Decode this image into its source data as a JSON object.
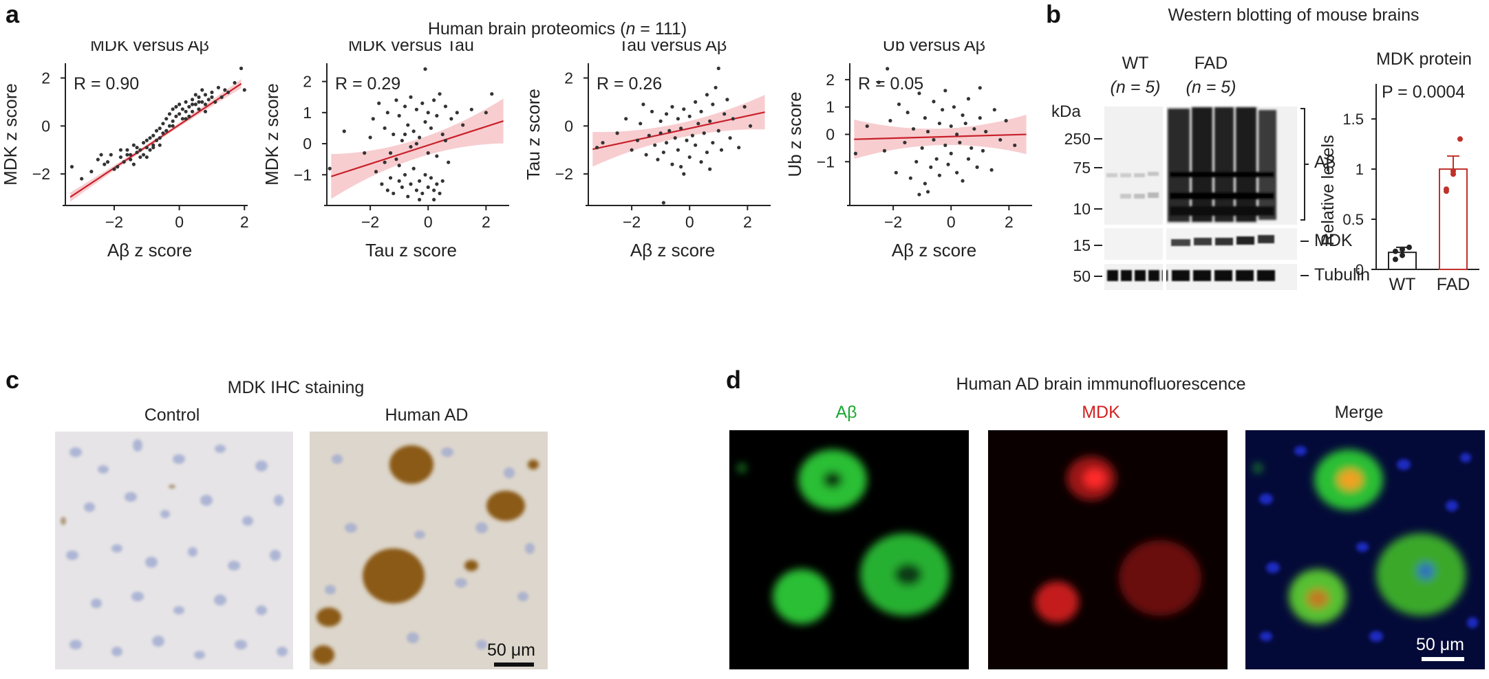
{
  "panel_labels": {
    "a": "a",
    "b": "b",
    "c": "c",
    "d": "d"
  },
  "panel_a": {
    "title_pre": "Human brain proteomics (",
    "title_n": "n",
    "title_post": " = 111)"
  },
  "panel_b": {
    "title": "Western blotting of mouse brains",
    "blot": {
      "lane_groups": [
        {
          "label": "WT",
          "n_label": "(n = 5)"
        },
        {
          "label": "FAD",
          "n_label": "(n = 5)"
        }
      ],
      "kda_label": "kDa",
      "markers": [
        "250",
        "75",
        "10",
        "15",
        "50"
      ],
      "bands": [
        "Aβ",
        "MDK",
        "Tubulin"
      ]
    },
    "quant_title": "MDK protein",
    "p_value": "P = 0.0004",
    "bar_chart_ylabel": "Relative levels"
  },
  "panel_c": {
    "title": "MDK IHC staining",
    "images": [
      {
        "label": "Control"
      },
      {
        "label": "Human AD"
      }
    ],
    "scale_bar": "50 μm"
  },
  "panel_d": {
    "title": "Human AD brain immunofluorescence",
    "images": [
      {
        "label": "Aβ",
        "color": "#1aa832"
      },
      {
        "label": "MDK",
        "color": "#d42020"
      },
      {
        "label": "Merge",
        "color": "#222222"
      }
    ],
    "scale_bar": "50 μm"
  },
  "chart_data": [
    {
      "type": "scatter",
      "title": "MDK versus Aβ",
      "xlabel": "Aβ z score",
      "ylabel": "MDK z score",
      "xlim": [
        -3.5,
        2.1
      ],
      "ylim": [
        -3.2,
        2.5
      ],
      "xticks": [
        -2,
        0,
        2
      ],
      "yticks": [
        -2,
        0,
        2
      ],
      "annotation": "R = 0.90",
      "fit": {
        "slope": 0.9,
        "intercept": 0.05,
        "ci_width": 0.08
      },
      "points": [
        [
          -3.3,
          -1.7
        ],
        [
          -3.0,
          -2.2
        ],
        [
          -2.7,
          -1.9
        ],
        [
          -2.5,
          -1.4
        ],
        [
          -2.3,
          -1.6
        ],
        [
          -2.2,
          -1.5
        ],
        [
          -2.1,
          -1.2
        ],
        [
          -2.0,
          -1.8
        ],
        [
          -1.9,
          -1.7
        ],
        [
          -1.8,
          -1.3
        ],
        [
          -1.7,
          -1.5
        ],
        [
          -1.6,
          -1.0
        ],
        [
          -1.5,
          -1.4
        ],
        [
          -1.5,
          -1.2
        ],
        [
          -1.4,
          -1.6
        ],
        [
          -1.3,
          -1.1
        ],
        [
          -1.3,
          -0.9
        ],
        [
          -1.2,
          -1.3
        ],
        [
          -1.2,
          -1.0
        ],
        [
          -1.1,
          -0.7
        ],
        [
          -1.1,
          -1.2
        ],
        [
          -1.0,
          -0.9
        ],
        [
          -1.0,
          -0.6
        ],
        [
          -0.9,
          -1.0
        ],
        [
          -0.9,
          -0.5
        ],
        [
          -0.8,
          -0.8
        ],
        [
          -0.8,
          -0.4
        ],
        [
          -0.7,
          -0.6
        ],
        [
          -0.7,
          -0.2
        ],
        [
          -0.6,
          -0.5
        ],
        [
          -0.6,
          -0.1
        ],
        [
          -0.5,
          -0.3
        ],
        [
          -0.5,
          0.1
        ],
        [
          -0.4,
          -0.2
        ],
        [
          -0.4,
          0.3
        ],
        [
          -0.3,
          0.0
        ],
        [
          -0.3,
          0.5
        ],
        [
          -0.2,
          0.2
        ],
        [
          -0.2,
          0.7
        ],
        [
          -0.1,
          0.4
        ],
        [
          -0.1,
          0.8
        ],
        [
          0.0,
          0.5
        ],
        [
          0.0,
          0.9
        ],
        [
          0.1,
          0.3
        ],
        [
          0.1,
          0.7
        ],
        [
          0.2,
          0.6
        ],
        [
          0.2,
          1.0
        ],
        [
          0.3,
          0.8
        ],
        [
          0.3,
          0.4
        ],
        [
          0.4,
          1.1
        ],
        [
          0.4,
          0.6
        ],
        [
          0.5,
          0.9
        ],
        [
          0.5,
          1.3
        ],
        [
          0.6,
          0.7
        ],
        [
          0.6,
          1.2
        ],
        [
          0.7,
          1.0
        ],
        [
          0.7,
          1.5
        ],
        [
          0.8,
          0.9
        ],
        [
          0.8,
          1.3
        ],
        [
          0.9,
          1.1
        ],
        [
          1.0,
          1.4
        ],
        [
          1.1,
          1.0
        ],
        [
          1.2,
          1.6
        ],
        [
          1.3,
          1.2
        ],
        [
          1.4,
          1.5
        ],
        [
          1.5,
          1.4
        ],
        [
          1.7,
          1.8
        ],
        [
          1.9,
          2.4
        ],
        [
          2.0,
          1.5
        ],
        [
          -1.6,
          -1.2
        ],
        [
          -1.4,
          -0.8
        ],
        [
          -1.0,
          -1.3
        ],
        [
          -0.6,
          -0.8
        ],
        [
          -0.2,
          0.0
        ],
        [
          0.2,
          0.3
        ],
        [
          0.6,
          1.0
        ],
        [
          1.0,
          1.2
        ],
        [
          -2.4,
          -1.2
        ],
        [
          -1.8,
          -1.0
        ],
        [
          -0.8,
          -0.9
        ],
        [
          0.4,
          0.9
        ],
        [
          0.8,
          0.6
        ]
      ]
    },
    {
      "type": "scatter",
      "title": "MDK versus Tau",
      "xlabel": "Tau z score",
      "ylabel": "MDK z score",
      "xlim": [
        -3.5,
        2.8
      ],
      "ylim": [
        -1.9,
        2.5
      ],
      "xticks": [
        -2,
        0,
        2
      ],
      "yticks": [
        -1,
        0,
        1,
        2
      ],
      "annotation": "R = 0.29",
      "fit": {
        "slope": 0.3,
        "intercept": -0.05,
        "ci_width": 0.3
      },
      "points": [
        [
          -3.4,
          -0.8
        ],
        [
          -2.9,
          0.4
        ],
        [
          -2.2,
          -0.3
        ],
        [
          -2.0,
          0.2
        ],
        [
          -1.9,
          0.8
        ],
        [
          -1.8,
          -0.9
        ],
        [
          -1.7,
          1.3
        ],
        [
          -1.6,
          -1.3
        ],
        [
          -1.5,
          0.5
        ],
        [
          -1.4,
          -1.5
        ],
        [
          -1.4,
          1.0
        ],
        [
          -1.3,
          -1.1
        ],
        [
          -1.2,
          0.3
        ],
        [
          -1.2,
          -1.6
        ],
        [
          -1.1,
          1.4
        ],
        [
          -1.1,
          -0.5
        ],
        [
          -1.0,
          -1.2
        ],
        [
          -1.0,
          0.9
        ],
        [
          -0.9,
          -1.4
        ],
        [
          -0.9,
          0.1
        ],
        [
          -0.8,
          1.2
        ],
        [
          -0.8,
          -1.0
        ],
        [
          -0.7,
          -1.7
        ],
        [
          -0.7,
          0.6
        ],
        [
          -0.6,
          -1.3
        ],
        [
          -0.6,
          1.5
        ],
        [
          -0.5,
          -0.8
        ],
        [
          -0.5,
          0.4
        ],
        [
          -0.4,
          -1.5
        ],
        [
          -0.4,
          1.1
        ],
        [
          -0.3,
          -1.2
        ],
        [
          -0.3,
          0.2
        ],
        [
          -0.2,
          -1.6
        ],
        [
          -0.2,
          1.3
        ],
        [
          -0.1,
          -1.0
        ],
        [
          -0.1,
          0.7
        ],
        [
          0.0,
          -1.4
        ],
        [
          0.0,
          1.0
        ],
        [
          0.1,
          -1.1
        ],
        [
          0.1,
          0.5
        ],
        [
          0.2,
          -1.5
        ],
        [
          0.2,
          1.4
        ],
        [
          0.3,
          -1.3
        ],
        [
          0.3,
          0.9
        ],
        [
          0.4,
          -1.6
        ],
        [
          0.4,
          1.6
        ],
        [
          0.5,
          -1.2
        ],
        [
          0.5,
          0.3
        ],
        [
          0.6,
          1.2
        ],
        [
          0.7,
          -0.6
        ],
        [
          0.8,
          0.8
        ],
        [
          1.0,
          1.0
        ],
        [
          1.2,
          0.6
        ],
        [
          1.5,
          1.1
        ],
        [
          2.0,
          1.0
        ],
        [
          2.2,
          1.6
        ],
        [
          -0.1,
          2.4
        ],
        [
          -1.3,
          -0.3
        ],
        [
          -0.6,
          -0.1
        ],
        [
          0.3,
          -0.4
        ],
        [
          -1.0,
          -0.7
        ],
        [
          -0.4,
          0.0
        ],
        [
          0.6,
          0.1
        ],
        [
          -0.8,
          0.3
        ],
        [
          -1.5,
          -0.6
        ],
        [
          0.0,
          -0.3
        ],
        [
          -0.3,
          -1.8
        ],
        [
          0.2,
          -1.8
        ]
      ]
    },
    {
      "type": "scatter",
      "title": "Tau versus Aβ",
      "xlabel": "Aβ z score",
      "ylabel": "Tau z score",
      "xlim": [
        -3.5,
        2.8
      ],
      "ylim": [
        -3.2,
        2.5
      ],
      "xticks": [
        -2,
        0,
        2
      ],
      "yticks": [
        -2,
        0,
        2
      ],
      "annotation": "R = 0.26",
      "fit": {
        "slope": 0.26,
        "intercept": -0.1,
        "ci_width": 0.3
      },
      "points": [
        [
          -3.2,
          -0.9
        ],
        [
          -3.0,
          -0.7
        ],
        [
          -2.5,
          -0.3
        ],
        [
          -2.2,
          0.3
        ],
        [
          -2.0,
          -1.0
        ],
        [
          -1.8,
          -0.6
        ],
        [
          -1.7,
          0.1
        ],
        [
          -1.5,
          -1.2
        ],
        [
          -1.4,
          -0.4
        ],
        [
          -1.3,
          0.6
        ],
        [
          -1.2,
          -0.8
        ],
        [
          -1.1,
          -1.4
        ],
        [
          -1.0,
          0.2
        ],
        [
          -1.0,
          -0.3
        ],
        [
          -0.9,
          -1.1
        ],
        [
          -0.8,
          0.5
        ],
        [
          -0.8,
          -0.7
        ],
        [
          -0.7,
          -0.2
        ],
        [
          -0.6,
          -1.6
        ],
        [
          -0.6,
          0.8
        ],
        [
          -0.5,
          -0.5
        ],
        [
          -0.4,
          0.3
        ],
        [
          -0.4,
          -1.0
        ],
        [
          -0.3,
          -0.1
        ],
        [
          -0.2,
          -2.0
        ],
        [
          -0.2,
          0.7
        ],
        [
          -0.1,
          -0.6
        ],
        [
          0.0,
          0.4
        ],
        [
          0.0,
          -1.3
        ],
        [
          0.1,
          -0.4
        ],
        [
          0.2,
          1.0
        ],
        [
          0.2,
          -0.8
        ],
        [
          0.3,
          0.1
        ],
        [
          0.4,
          -1.5
        ],
        [
          0.4,
          0.6
        ],
        [
          0.5,
          -0.3
        ],
        [
          0.6,
          1.3
        ],
        [
          0.6,
          -1.1
        ],
        [
          0.7,
          0.2
        ],
        [
          0.8,
          -0.7
        ],
        [
          0.8,
          0.9
        ],
        [
          0.9,
          1.6
        ],
        [
          1.0,
          -0.2
        ],
        [
          1.0,
          2.4
        ],
        [
          1.1,
          -1.0
        ],
        [
          1.2,
          0.5
        ],
        [
          1.3,
          1.1
        ],
        [
          1.4,
          -0.5
        ],
        [
          1.5,
          0.3
        ],
        [
          1.7,
          -0.9
        ],
        [
          1.9,
          0.8
        ],
        [
          2.1,
          0.0
        ],
        [
          -0.9,
          -3.2
        ],
        [
          -1.6,
          0.9
        ],
        [
          -0.3,
          -1.7
        ],
        [
          0.7,
          -1.8
        ]
      ]
    },
    {
      "type": "scatter",
      "title": "Ub versus Aβ",
      "xlabel": "Aβ z score",
      "ylabel": "Ub z score",
      "xlim": [
        -3.5,
        2.8
      ],
      "ylim": [
        -2.5,
        2.5
      ],
      "xticks": [
        -2,
        0,
        2
      ],
      "yticks": [
        -1,
        0,
        1,
        2
      ],
      "annotation": "R = 0.05",
      "fit": {
        "slope": 0.03,
        "intercept": -0.08,
        "ci_width": 0.3
      },
      "points": [
        [
          -3.3,
          -0.7
        ],
        [
          -2.9,
          0.3
        ],
        [
          -2.5,
          1.9
        ],
        [
          -2.3,
          -0.6
        ],
        [
          -2.1,
          0.5
        ],
        [
          -1.9,
          -1.4
        ],
        [
          -1.8,
          1.1
        ],
        [
          -1.6,
          -0.3
        ],
        [
          -1.5,
          0.8
        ],
        [
          -1.4,
          -1.6
        ],
        [
          -1.3,
          0.2
        ],
        [
          -1.2,
          -1.0
        ],
        [
          -1.1,
          1.5
        ],
        [
          -1.0,
          -0.5
        ],
        [
          -0.9,
          0.6
        ],
        [
          -0.9,
          -1.8
        ],
        [
          -0.8,
          0.1
        ],
        [
          -0.7,
          -1.2
        ],
        [
          -0.6,
          1.2
        ],
        [
          -0.6,
          -0.2
        ],
        [
          -0.5,
          -0.9
        ],
        [
          -0.4,
          0.4
        ],
        [
          -0.4,
          -1.5
        ],
        [
          -0.3,
          0.9
        ],
        [
          -0.2,
          -0.4
        ],
        [
          -0.2,
          1.6
        ],
        [
          -0.1,
          -1.1
        ],
        [
          0.0,
          0.3
        ],
        [
          0.0,
          -0.7
        ],
        [
          0.1,
          1.0
        ],
        [
          0.2,
          -1.4
        ],
        [
          0.2,
          0.0
        ],
        [
          0.3,
          -0.3
        ],
        [
          0.4,
          0.7
        ],
        [
          0.4,
          -1.7
        ],
        [
          0.5,
          0.4
        ],
        [
          0.6,
          -0.9
        ],
        [
          0.6,
          1.3
        ],
        [
          0.7,
          -0.5
        ],
        [
          0.8,
          0.2
        ],
        [
          0.9,
          -1.2
        ],
        [
          1.0,
          0.6
        ],
        [
          1.0,
          1.7
        ],
        [
          1.1,
          -0.6
        ],
        [
          1.2,
          0.1
        ],
        [
          1.4,
          -1.3
        ],
        [
          1.5,
          0.9
        ],
        [
          1.7,
          -0.2
        ],
        [
          1.9,
          0.5
        ],
        [
          2.2,
          -0.4
        ],
        [
          -0.8,
          -2.1
        ],
        [
          -2.2,
          2.4
        ],
        [
          -1.1,
          -2.2
        ]
      ]
    },
    {
      "type": "bar",
      "title": "MDK protein",
      "ylabel": "Relative levels",
      "categories": [
        "WT",
        "FAD"
      ],
      "values": [
        0.17,
        1.0
      ],
      "errors": [
        0.05,
        0.13
      ],
      "points": [
        [
          0.1,
          0.14,
          0.22,
          0.18,
          0.2
        ],
        [
          0.8,
          0.95,
          1.3,
          0.78,
          0.98
        ]
      ],
      "colors": [
        "#222222",
        "#c0302a"
      ],
      "ylim": [
        0,
        1.85
      ],
      "yticks": [
        0,
        0.5,
        1.0,
        1.5
      ],
      "annotation": "P = 0.0004"
    }
  ]
}
